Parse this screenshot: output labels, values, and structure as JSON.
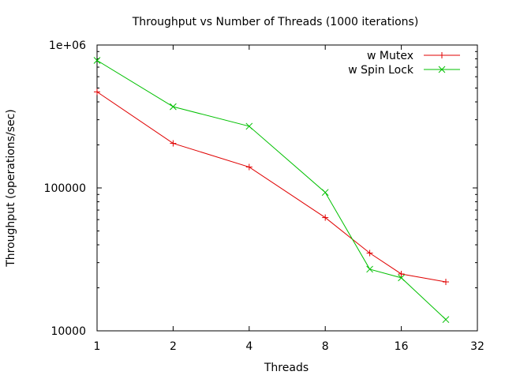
{
  "chart_data": {
    "type": "line",
    "title": "Throughput vs Number of Threads (1000 iterations)",
    "xlabel": "Threads",
    "ylabel": "Throughput (operations/sec)",
    "x_scale": "log2",
    "y_scale": "log10",
    "xlim": [
      1,
      32
    ],
    "ylim": [
      10000,
      1000000
    ],
    "x_ticks": [
      1,
      2,
      4,
      8,
      16,
      32
    ],
    "x_tick_labels": [
      "1",
      "2",
      "4",
      "8",
      "16",
      "32"
    ],
    "y_ticks": [
      10000,
      100000,
      1000000
    ],
    "y_tick_labels": [
      "10000",
      "100000",
      "1e+06"
    ],
    "legend_position": "top-right",
    "grid": false,
    "series": [
      {
        "name": "w Mutex",
        "color": "#e00000",
        "marker": "plus",
        "x": [
          1,
          2,
          4,
          8,
          12,
          16,
          24
        ],
        "y": [
          470000,
          205000,
          140000,
          62000,
          35000,
          25000,
          22000
        ]
      },
      {
        "name": "w Spin Lock",
        "color": "#00c000",
        "marker": "cross",
        "x": [
          1,
          2,
          4,
          8,
          12,
          16,
          24
        ],
        "y": [
          780000,
          370000,
          270000,
          93000,
          27000,
          23500,
          12000
        ]
      }
    ]
  }
}
